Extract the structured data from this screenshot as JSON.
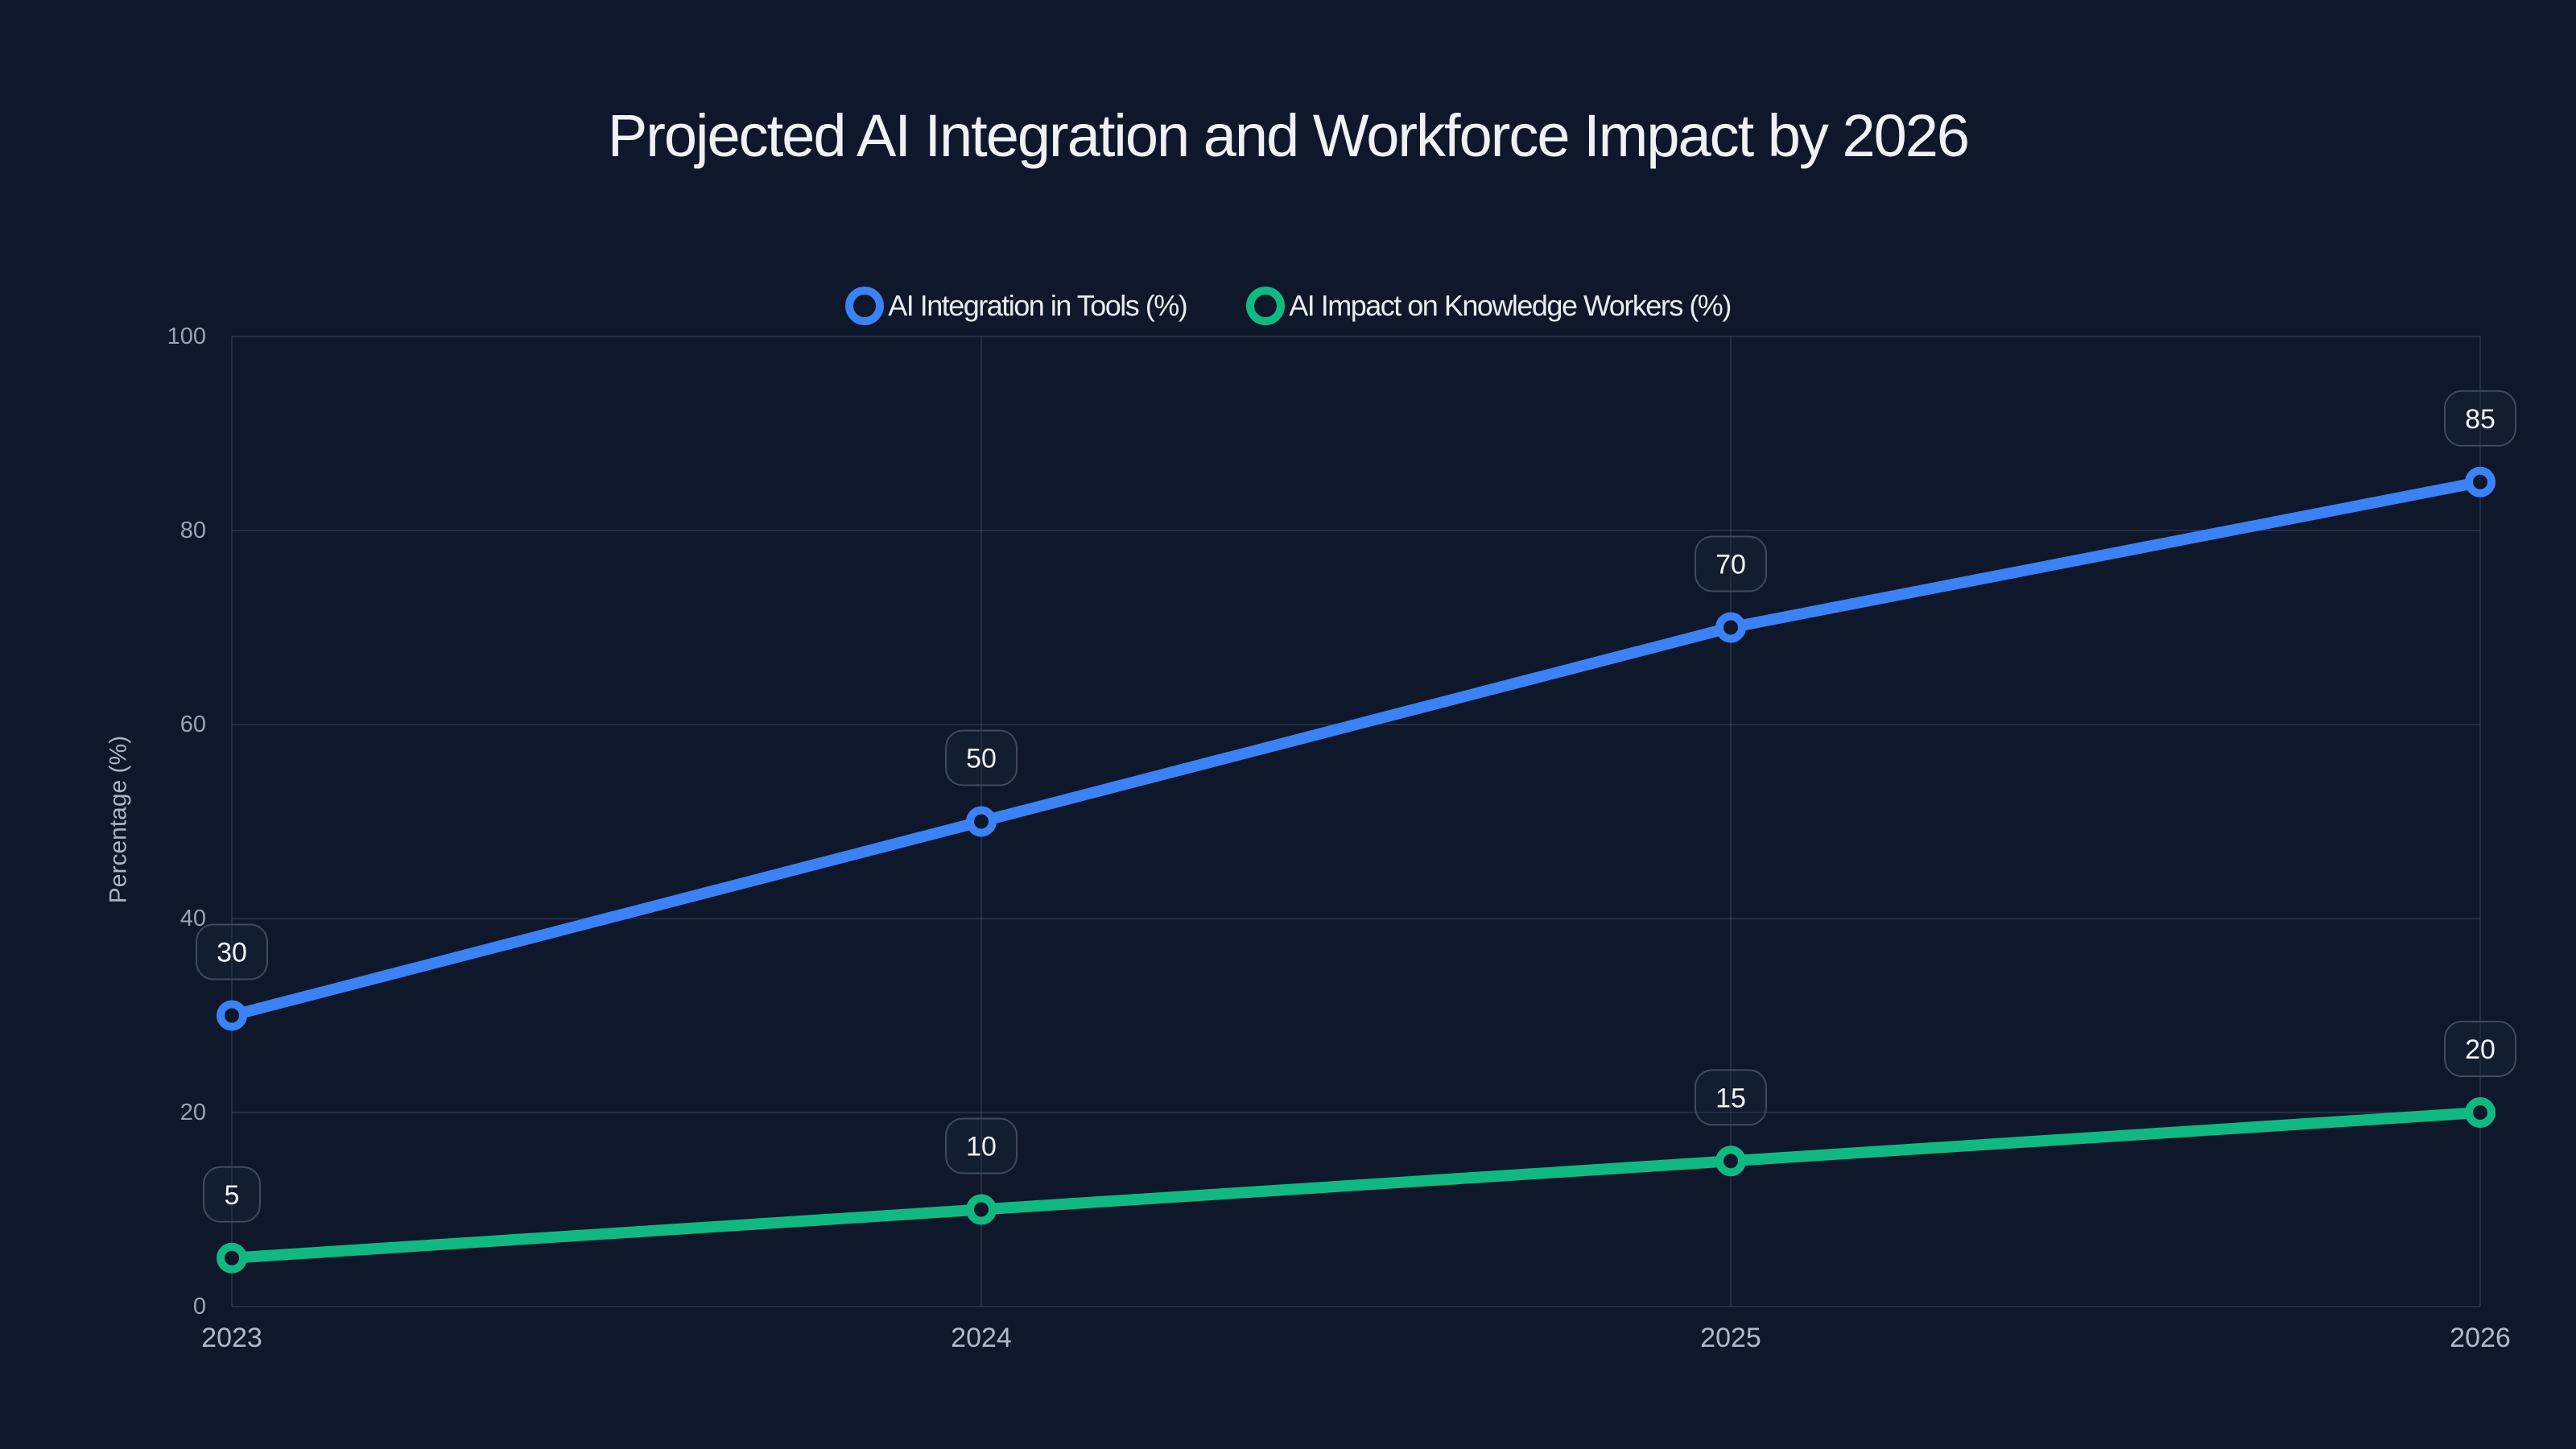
{
  "title": "Projected AI Integration and Workforce Impact by 2026",
  "chart_data": {
    "type": "line",
    "categories": [
      "2023",
      "2024",
      "2025",
      "2026"
    ],
    "series": [
      {
        "name": "AI Integration in Tools (%)",
        "color": "#3b82f6",
        "values": [
          30,
          50,
          70,
          85
        ]
      },
      {
        "name": "AI Impact on Knowledge Workers (%)",
        "color": "#10b981",
        "values": [
          5,
          10,
          15,
          20
        ]
      }
    ],
    "title": "Projected AI Integration and Workforce Impact by 2026",
    "xlabel": "",
    "ylabel": "Percentage (%)",
    "ylim": [
      0,
      100
    ],
    "yticks": [
      0,
      20,
      40,
      60,
      80,
      100
    ],
    "grid": true,
    "legend_position": "top",
    "point_labels": [
      [
        30,
        50,
        70,
        85
      ],
      [
        5,
        10,
        15,
        20
      ]
    ]
  },
  "colors": {
    "background": "#0f172a",
    "grid": "rgba(148,163,184,0.16)",
    "y_tick_text": "#98a4b6",
    "x_tick_text": "#b0bac9",
    "axis_title_text": "#a9b4c4",
    "title_text": "#eef2f7",
    "legend_text": "#e7ecf3",
    "label_box_fill": "rgba(30,41,59,0.35)",
    "label_box_border": "#3f4a5f",
    "label_box_text": "#f1f5f9"
  }
}
